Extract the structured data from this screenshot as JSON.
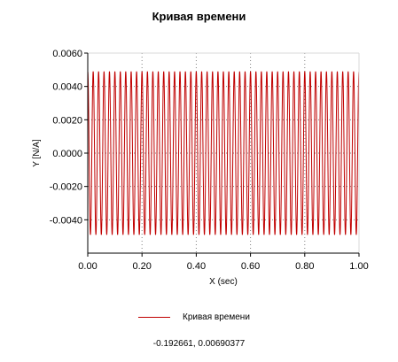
{
  "chart_data": {
    "type": "line",
    "title": "Кривая времени",
    "xlabel": "X (sec)",
    "ylabel": "Y [N/A]",
    "xlim": [
      0.0,
      1.0
    ],
    "ylim": [
      -0.006,
      0.006
    ],
    "x_ticks": [
      "0.00",
      "0.20",
      "0.40",
      "0.60",
      "0.80",
      "1.00"
    ],
    "y_ticks": [
      "0.0060",
      "0.0040",
      "0.0020",
      "0.0000",
      "-0.0020",
      "-0.0040"
    ],
    "grid": true,
    "legend_position": "bottom",
    "series": [
      {
        "name": "Кривая времени",
        "color": "#c00000",
        "amplitude": 0.0049,
        "cycles_in_window": 50,
        "x_start": 0.0,
        "x_end": 1.0
      }
    ]
  },
  "readout": "-0.192661, 0.00690377"
}
